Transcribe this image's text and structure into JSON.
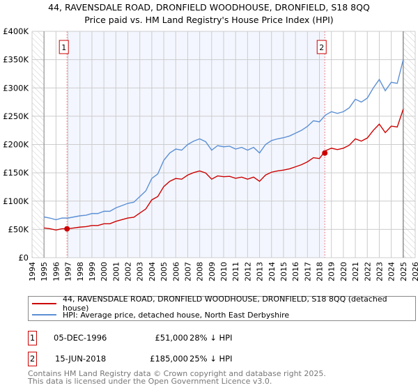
{
  "chart_data": {
    "type": "line",
    "title": "44, RAVENSDALE ROAD, DRONFIELD WOODHOUSE, DRONFIELD, S18 8QQ",
    "subtitle": "Price paid vs. HM Land Registry's House Price Index (HPI)",
    "xlim": [
      1994,
      2026
    ],
    "ylim": [
      0,
      400000
    ],
    "x_ticks": [
      "1994",
      "1995",
      "1996",
      "1997",
      "1998",
      "1999",
      "2000",
      "2001",
      "2002",
      "2003",
      "2004",
      "2005",
      "2006",
      "2007",
      "2008",
      "2009",
      "2010",
      "2011",
      "2012",
      "2013",
      "2014",
      "2015",
      "2016",
      "2017",
      "2018",
      "2019",
      "2020",
      "2021",
      "2022",
      "2023",
      "2024",
      "2025",
      "2026"
    ],
    "y_ticks": [
      {
        "v": 0,
        "label": "£0"
      },
      {
        "v": 50000,
        "label": "£50K"
      },
      {
        "v": 100000,
        "label": "£100K"
      },
      {
        "v": 150000,
        "label": "£150K"
      },
      {
        "v": 200000,
        "label": "£200K"
      },
      {
        "v": 250000,
        "label": "£250K"
      },
      {
        "v": 300000,
        "label": "£300K"
      },
      {
        "v": 350000,
        "label": "£350K"
      },
      {
        "v": 400000,
        "label": "£400K"
      }
    ],
    "grid": true,
    "x_start": 1995,
    "x_step": 0.5,
    "series": [
      {
        "name": "44, RAVENSDALE ROAD, DRONFIELD WOODHOUSE, DRONFIELD, S18 8QQ (detached house)",
        "color": "#cc0000",
        "values_k": [
          52.6,
          51.1,
          48.9,
          51.1,
          51.1,
          52.6,
          54,
          54.8,
          56.9,
          56.9,
          59.9,
          59.9,
          64.2,
          67.2,
          70.1,
          71.5,
          78.8,
          86.1,
          102.2,
          108,
          125.6,
          135,
          140,
          138.7,
          146,
          150.4,
          153.3,
          149.7,
          138.7,
          144.5,
          143.1,
          143.8,
          140.2,
          142.4,
          138.7,
          142.4,
          135,
          146,
          151.1,
          153.3,
          154.8,
          157,
          160.6,
          164.3,
          169.4,
          176.7,
          175.2,
          189,
          193.5,
          191,
          193.5,
          198.8,
          210,
          206,
          211.5,
          225,
          236,
          221,
          232.5,
          231,
          262.5
        ]
      },
      {
        "name": "HPI: Average price, detached house, North East Derbyshire",
        "color": "#5b8fd4",
        "values_k": [
          72,
          70,
          67,
          70,
          70,
          72,
          74,
          75,
          78,
          78,
          82,
          82,
          88,
          92,
          96,
          98,
          108,
          118,
          140,
          148,
          172,
          185,
          192,
          190,
          200,
          206,
          210,
          205,
          190,
          198,
          196,
          197,
          192,
          195,
          190,
          195,
          185,
          200,
          207,
          210,
          212,
          215,
          220,
          225,
          232,
          242,
          240,
          252,
          258,
          255,
          258,
          265,
          280,
          275,
          282,
          300,
          315,
          295,
          310,
          308,
          350
        ]
      }
    ],
    "sales": [
      {
        "label": "1",
        "x": 1996.92,
        "value": 51000
      },
      {
        "label": "2",
        "x": 2018.45,
        "value": 185000
      }
    ],
    "shaded_range": [
      1996.92,
      2018.45
    ]
  },
  "legend": {
    "property": "44, RAVENSDALE ROAD, DRONFIELD WOODHOUSE, DRONFIELD, S18 8QQ (detached house)",
    "hpi": "HPI: Average price, detached house, North East Derbyshire"
  },
  "transactions": [
    {
      "num": "1",
      "date": "05-DEC-1996",
      "price": "£51,000",
      "delta": "28% ↓ HPI"
    },
    {
      "num": "2",
      "date": "15-JUN-2018",
      "price": "£185,000",
      "delta": "25% ↓ HPI"
    }
  ],
  "footer": {
    "line1": "Contains HM Land Registry data © Crown copyright and database right 2025.",
    "line2": "This data is licensed under the Open Government Licence v3.0."
  }
}
